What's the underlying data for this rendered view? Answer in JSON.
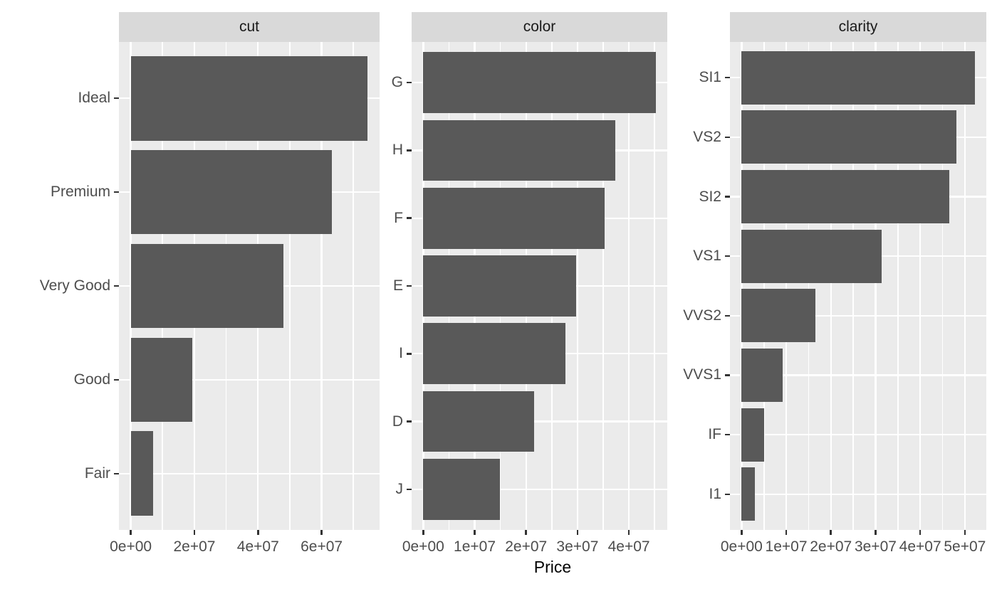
{
  "figure": {
    "xlabel": "Price",
    "bar_color": "#595959",
    "panel_bg": "#EBEBEB",
    "strip_bg": "#D9D9D9",
    "grid_color": "#FFFFFF",
    "axis_text_color": "#4D4D4D",
    "strip_text_color": "#1A1A1A",
    "tick_color": "#333333"
  },
  "chart_data": [
    {
      "type": "bar",
      "orientation": "horizontal",
      "facet_label": "cut",
      "categories": [
        "Ideal",
        "Premium",
        "Very Good",
        "Good",
        "Fair"
      ],
      "values": [
        74500000,
        63200000,
        48100000,
        19300000,
        7000000
      ],
      "xlim": [
        -3725000,
        78225000
      ],
      "x_ticks": [
        {
          "label": "0e+00",
          "value": 0
        },
        {
          "label": "2e+07",
          "value": 20000000
        },
        {
          "label": "4e+07",
          "value": 40000000
        },
        {
          "label": "6e+07",
          "value": 60000000
        }
      ],
      "x_minor_values": [
        10000000,
        30000000,
        50000000,
        70000000
      ]
    },
    {
      "type": "bar",
      "orientation": "horizontal",
      "facet_label": "color",
      "categories": [
        "G",
        "H",
        "F",
        "E",
        "I",
        "D",
        "J"
      ],
      "values": [
        45200000,
        37300000,
        35300000,
        29800000,
        27600000,
        21500000,
        14900000
      ],
      "xlim": [
        -2260000,
        47460000
      ],
      "x_ticks": [
        {
          "label": "0e+00",
          "value": 0
        },
        {
          "label": "1e+07",
          "value": 10000000
        },
        {
          "label": "2e+07",
          "value": 20000000
        },
        {
          "label": "3e+07",
          "value": 30000000
        },
        {
          "label": "4e+07",
          "value": 40000000
        }
      ],
      "x_minor_values": [
        5000000,
        15000000,
        25000000,
        35000000,
        45000000
      ]
    },
    {
      "type": "bar",
      "orientation": "horizontal",
      "facet_label": "clarity",
      "categories": [
        "SI1",
        "VS2",
        "SI2",
        "VS1",
        "VVS2",
        "VVS1",
        "IF",
        "I1"
      ],
      "values": [
        52200000,
        48100000,
        46500000,
        31400000,
        16600000,
        9200000,
        5100000,
        2900000
      ],
      "xlim": [
        -2610000,
        54810000
      ],
      "x_ticks": [
        {
          "label": "0e+00",
          "value": 0
        },
        {
          "label": "1e+07",
          "value": 10000000
        },
        {
          "label": "2e+07",
          "value": 20000000
        },
        {
          "label": "3e+07",
          "value": 30000000
        },
        {
          "label": "4e+07",
          "value": 40000000
        },
        {
          "label": "5e+07",
          "value": 50000000
        }
      ],
      "x_minor_values": [
        5000000,
        15000000,
        25000000,
        35000000,
        45000000
      ]
    }
  ]
}
